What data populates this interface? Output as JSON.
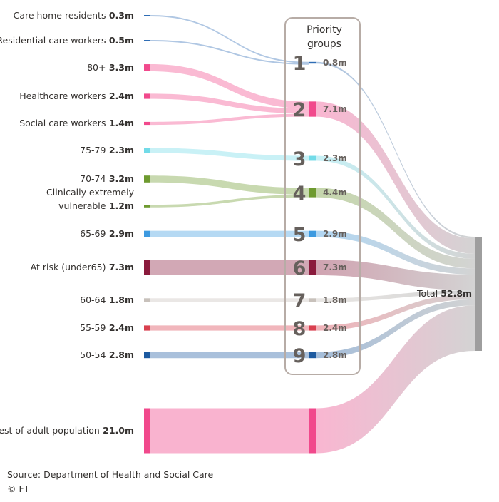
{
  "priority_box": {
    "title_line1": "Priority",
    "title_line2": "groups"
  },
  "sources": [
    {
      "id": "care_home",
      "lines": [
        {
          "text": "Care home residents",
          "value": "0.3m"
        }
      ],
      "color": "#2f6db5",
      "group": 1,
      "amount": 0.3
    },
    {
      "id": "res_care",
      "lines": [
        {
          "text": "Residential care workers",
          "value": "0.5m"
        }
      ],
      "color": "#2f6db5",
      "group": 1,
      "amount": 0.5
    },
    {
      "id": "80plus",
      "lines": [
        {
          "text": "80+",
          "value": "3.3m"
        }
      ],
      "color": "#f1498c",
      "group": 2,
      "amount": 3.3
    },
    {
      "id": "health",
      "lines": [
        {
          "text": "Healthcare workers",
          "value": "2.4m"
        }
      ],
      "color": "#f1498c",
      "group": 2,
      "amount": 2.4
    },
    {
      "id": "social",
      "lines": [
        {
          "text": "Social care workers",
          "value": "1.4m"
        }
      ],
      "color": "#f1498c",
      "group": 2,
      "amount": 1.4
    },
    {
      "id": "75_79",
      "lines": [
        {
          "text": "75-79",
          "value": "2.3m"
        }
      ],
      "color": "#72dbe8",
      "group": 3,
      "amount": 2.3
    },
    {
      "id": "70_74",
      "lines": [
        {
          "text": "70-74",
          "value": "3.2m"
        }
      ],
      "color": "#6e9a2f",
      "group": 4,
      "amount": 3.2
    },
    {
      "id": "cev",
      "lines": [
        {
          "text": "Clinically extremely",
          "value": ""
        },
        {
          "text": "vulnerable",
          "value": "1.2m"
        }
      ],
      "color": "#6e9a2f",
      "group": 4,
      "amount": 1.2
    },
    {
      "id": "65_69",
      "lines": [
        {
          "text": "65-69",
          "value": "2.9m"
        }
      ],
      "color": "#3d9ae0",
      "group": 5,
      "amount": 2.9
    },
    {
      "id": "atrisk",
      "lines": [
        {
          "text": "At risk (under65)",
          "value": "7.3m"
        }
      ],
      "color": "#8a1a3c",
      "group": 6,
      "amount": 7.3
    },
    {
      "id": "60_64",
      "lines": [
        {
          "text": "60-64",
          "value": "1.8m"
        }
      ],
      "color": "#c8c1bb",
      "group": 7,
      "amount": 1.8
    },
    {
      "id": "55_59",
      "lines": [
        {
          "text": "55-59",
          "value": "2.4m"
        }
      ],
      "color": "#d9404f",
      "group": 8,
      "amount": 2.4
    },
    {
      "id": "50_54",
      "lines": [
        {
          "text": "50-54",
          "value": "2.8m"
        }
      ],
      "color": "#1c5aa0",
      "group": 9,
      "amount": 2.8
    },
    {
      "id": "rest",
      "lines": [
        {
          "text": "Rest of adult population",
          "value": "21.0m"
        }
      ],
      "color": "#f1498c",
      "group": 10,
      "amount": 21.0
    }
  ],
  "groups": [
    {
      "num": "1",
      "value": "0.8m",
      "amount": 0.8,
      "color": "#2f6db5"
    },
    {
      "num": "2",
      "value": "7.1m",
      "amount": 7.1,
      "color": "#f1498c"
    },
    {
      "num": "3",
      "value": "2.3m",
      "amount": 2.3,
      "color": "#72dbe8"
    },
    {
      "num": "4",
      "value": "4.4m",
      "amount": 4.4,
      "color": "#6e9a2f"
    },
    {
      "num": "5",
      "value": "2.9m",
      "amount": 2.9,
      "color": "#3d9ae0"
    },
    {
      "num": "6",
      "value": "7.3m",
      "amount": 7.3,
      "color": "#8a1a3c"
    },
    {
      "num": "7",
      "value": "1.8m",
      "amount": 1.8,
      "color": "#c8c1bb"
    },
    {
      "num": "8",
      "value": "2.4m",
      "amount": 2.4,
      "color": "#d9404f"
    },
    {
      "num": "9",
      "value": "2.8m",
      "amount": 2.8,
      "color": "#1c5aa0"
    },
    {
      "num": "",
      "value": "",
      "amount": 21.0,
      "color": "#f1498c"
    }
  ],
  "total": {
    "label": "Total",
    "value": "52.8m",
    "amount": 52.8,
    "color": "#9e9e9e"
  },
  "footer": {
    "source": "Source: Department of Health and Social Care",
    "credit": "© FT"
  }
}
